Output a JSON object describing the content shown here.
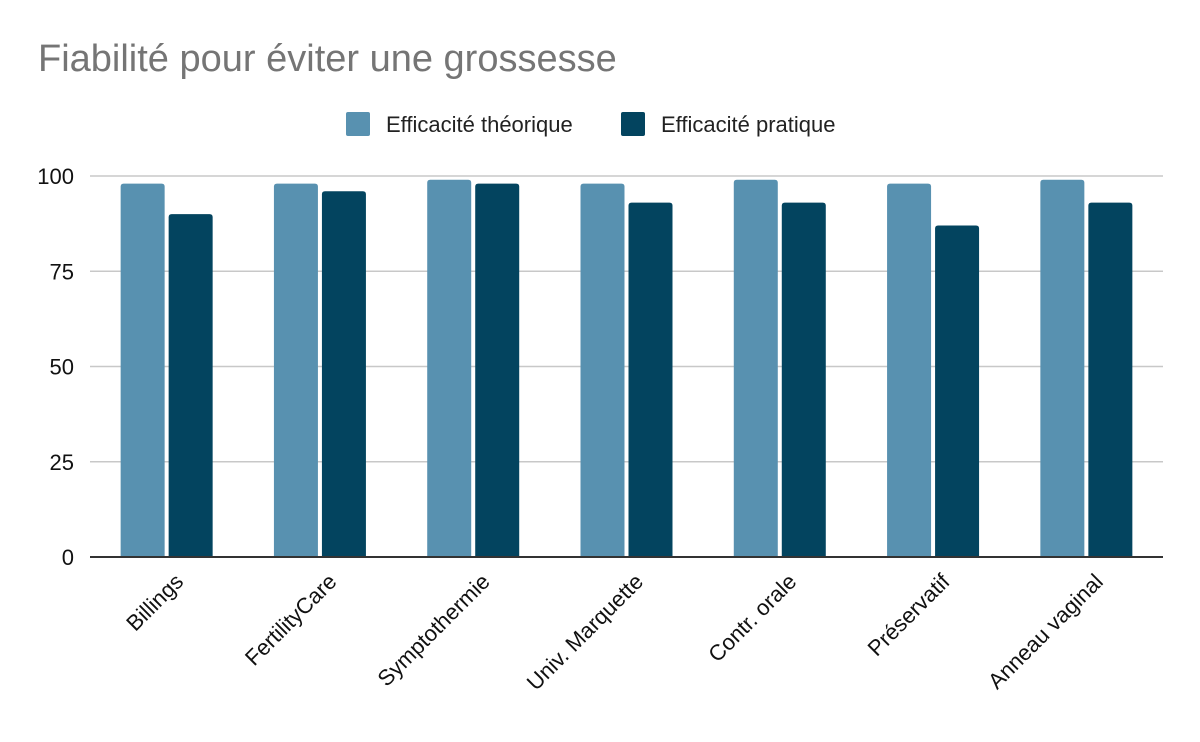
{
  "chart_data": {
    "type": "bar",
    "title": "Fiabilité pour éviter une grossesse",
    "xlabel": "",
    "ylabel": "",
    "categories": [
      "Billings",
      "FertilityCare",
      "Symptothermie",
      "Univ. Marquette",
      "Contr. orale",
      "Préservatif",
      "Anneau vaginal"
    ],
    "series": [
      {
        "name": "Efficacité théorique",
        "color": "#5891b0",
        "values": [
          98,
          98,
          99,
          98,
          99,
          98,
          99
        ]
      },
      {
        "name": "Efficacité pratique",
        "color": "#03445f",
        "values": [
          90,
          96,
          98,
          93,
          93,
          87,
          93
        ]
      }
    ],
    "ylim": [
      0,
      100
    ],
    "yticks": [
      "0",
      "25",
      "50",
      "75",
      "100"
    ],
    "grid": true,
    "legend_position": "top"
  }
}
